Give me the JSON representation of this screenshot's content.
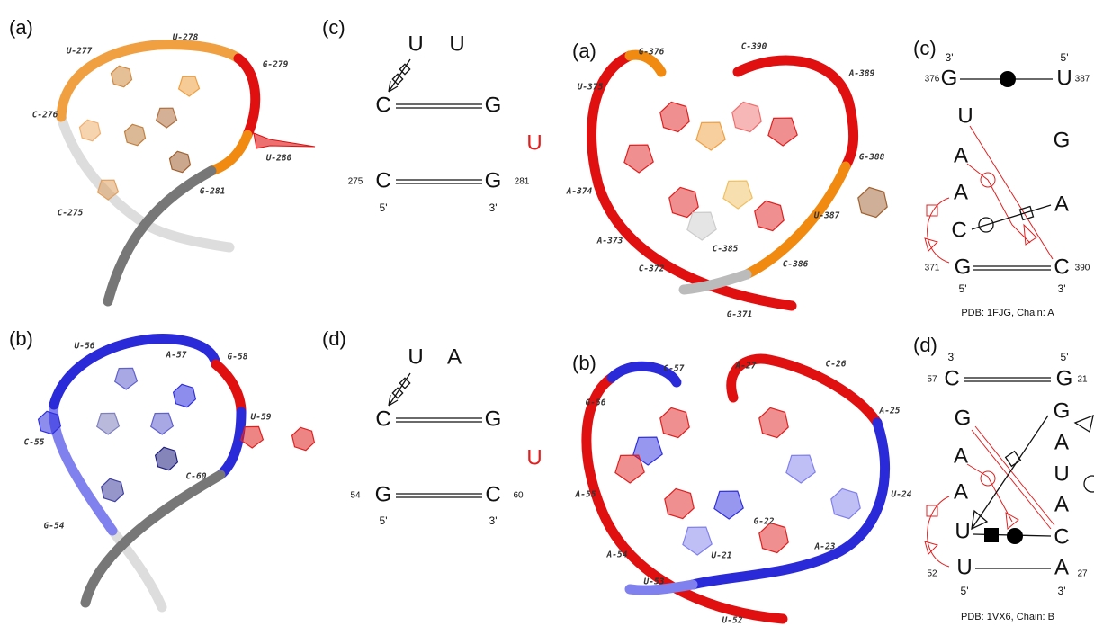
{
  "panels": [
    {
      "label": "(a)",
      "residues": [
        "U-277",
        "U-278",
        "G-279",
        "C-276",
        "U-280",
        "G-281",
        "C-275"
      ]
    },
    {
      "label": "(b)",
      "residues": [
        "U-56",
        "A-57",
        "G-58",
        "U-59",
        "C-55",
        "C-60",
        "G-54"
      ]
    },
    {
      "label": "(c)",
      "bases": [
        "U",
        "U",
        "C",
        "G",
        "U",
        "C",
        "G"
      ],
      "numbers": [
        "275",
        "281"
      ],
      "ends": [
        "5'",
        "3'"
      ]
    },
    {
      "label": "(d)",
      "bases": [
        "U",
        "A",
        "C",
        "G",
        "U",
        "G",
        "C"
      ],
      "numbers": [
        "54",
        "60"
      ],
      "ends": [
        "5'",
        "3'"
      ]
    },
    {
      "label": "(a)",
      "residues": [
        "G-376",
        "C-390",
        "A-389",
        "U-375",
        "G-388",
        "A-374",
        "U-387",
        "A-373",
        "C-385",
        "C-386",
        "C-372",
        "G-371"
      ]
    },
    {
      "label": "(c)",
      "bases": [
        "G",
        "U",
        "U",
        "G",
        "A",
        "A",
        "A",
        "C",
        "G",
        "C"
      ],
      "numbers": [
        "376",
        "387",
        "371",
        "390"
      ],
      "ends": [
        "3'",
        "5'",
        "5'",
        "3'"
      ],
      "caption": "PDB: 1FJG, Chain: A"
    },
    {
      "label": "(b)",
      "residues": [
        "C-57",
        "A-27",
        "C-26",
        "G-56",
        "A-25",
        "A-55",
        "U-24",
        "G-22",
        "A-23",
        "A-54",
        "U-21",
        "U-53",
        "U-52"
      ]
    },
    {
      "label": "(d)",
      "bases": [
        "C",
        "G",
        "G",
        "G",
        "A",
        "A",
        "U",
        "A",
        "A",
        "U",
        "C",
        "U",
        "A"
      ],
      "numbers": [
        "57",
        "21",
        "52",
        "27"
      ],
      "ends": [
        "3'",
        "5'",
        "5'",
        "3'"
      ],
      "caption": "PDB: 1VX6, Chain: B"
    }
  ]
}
